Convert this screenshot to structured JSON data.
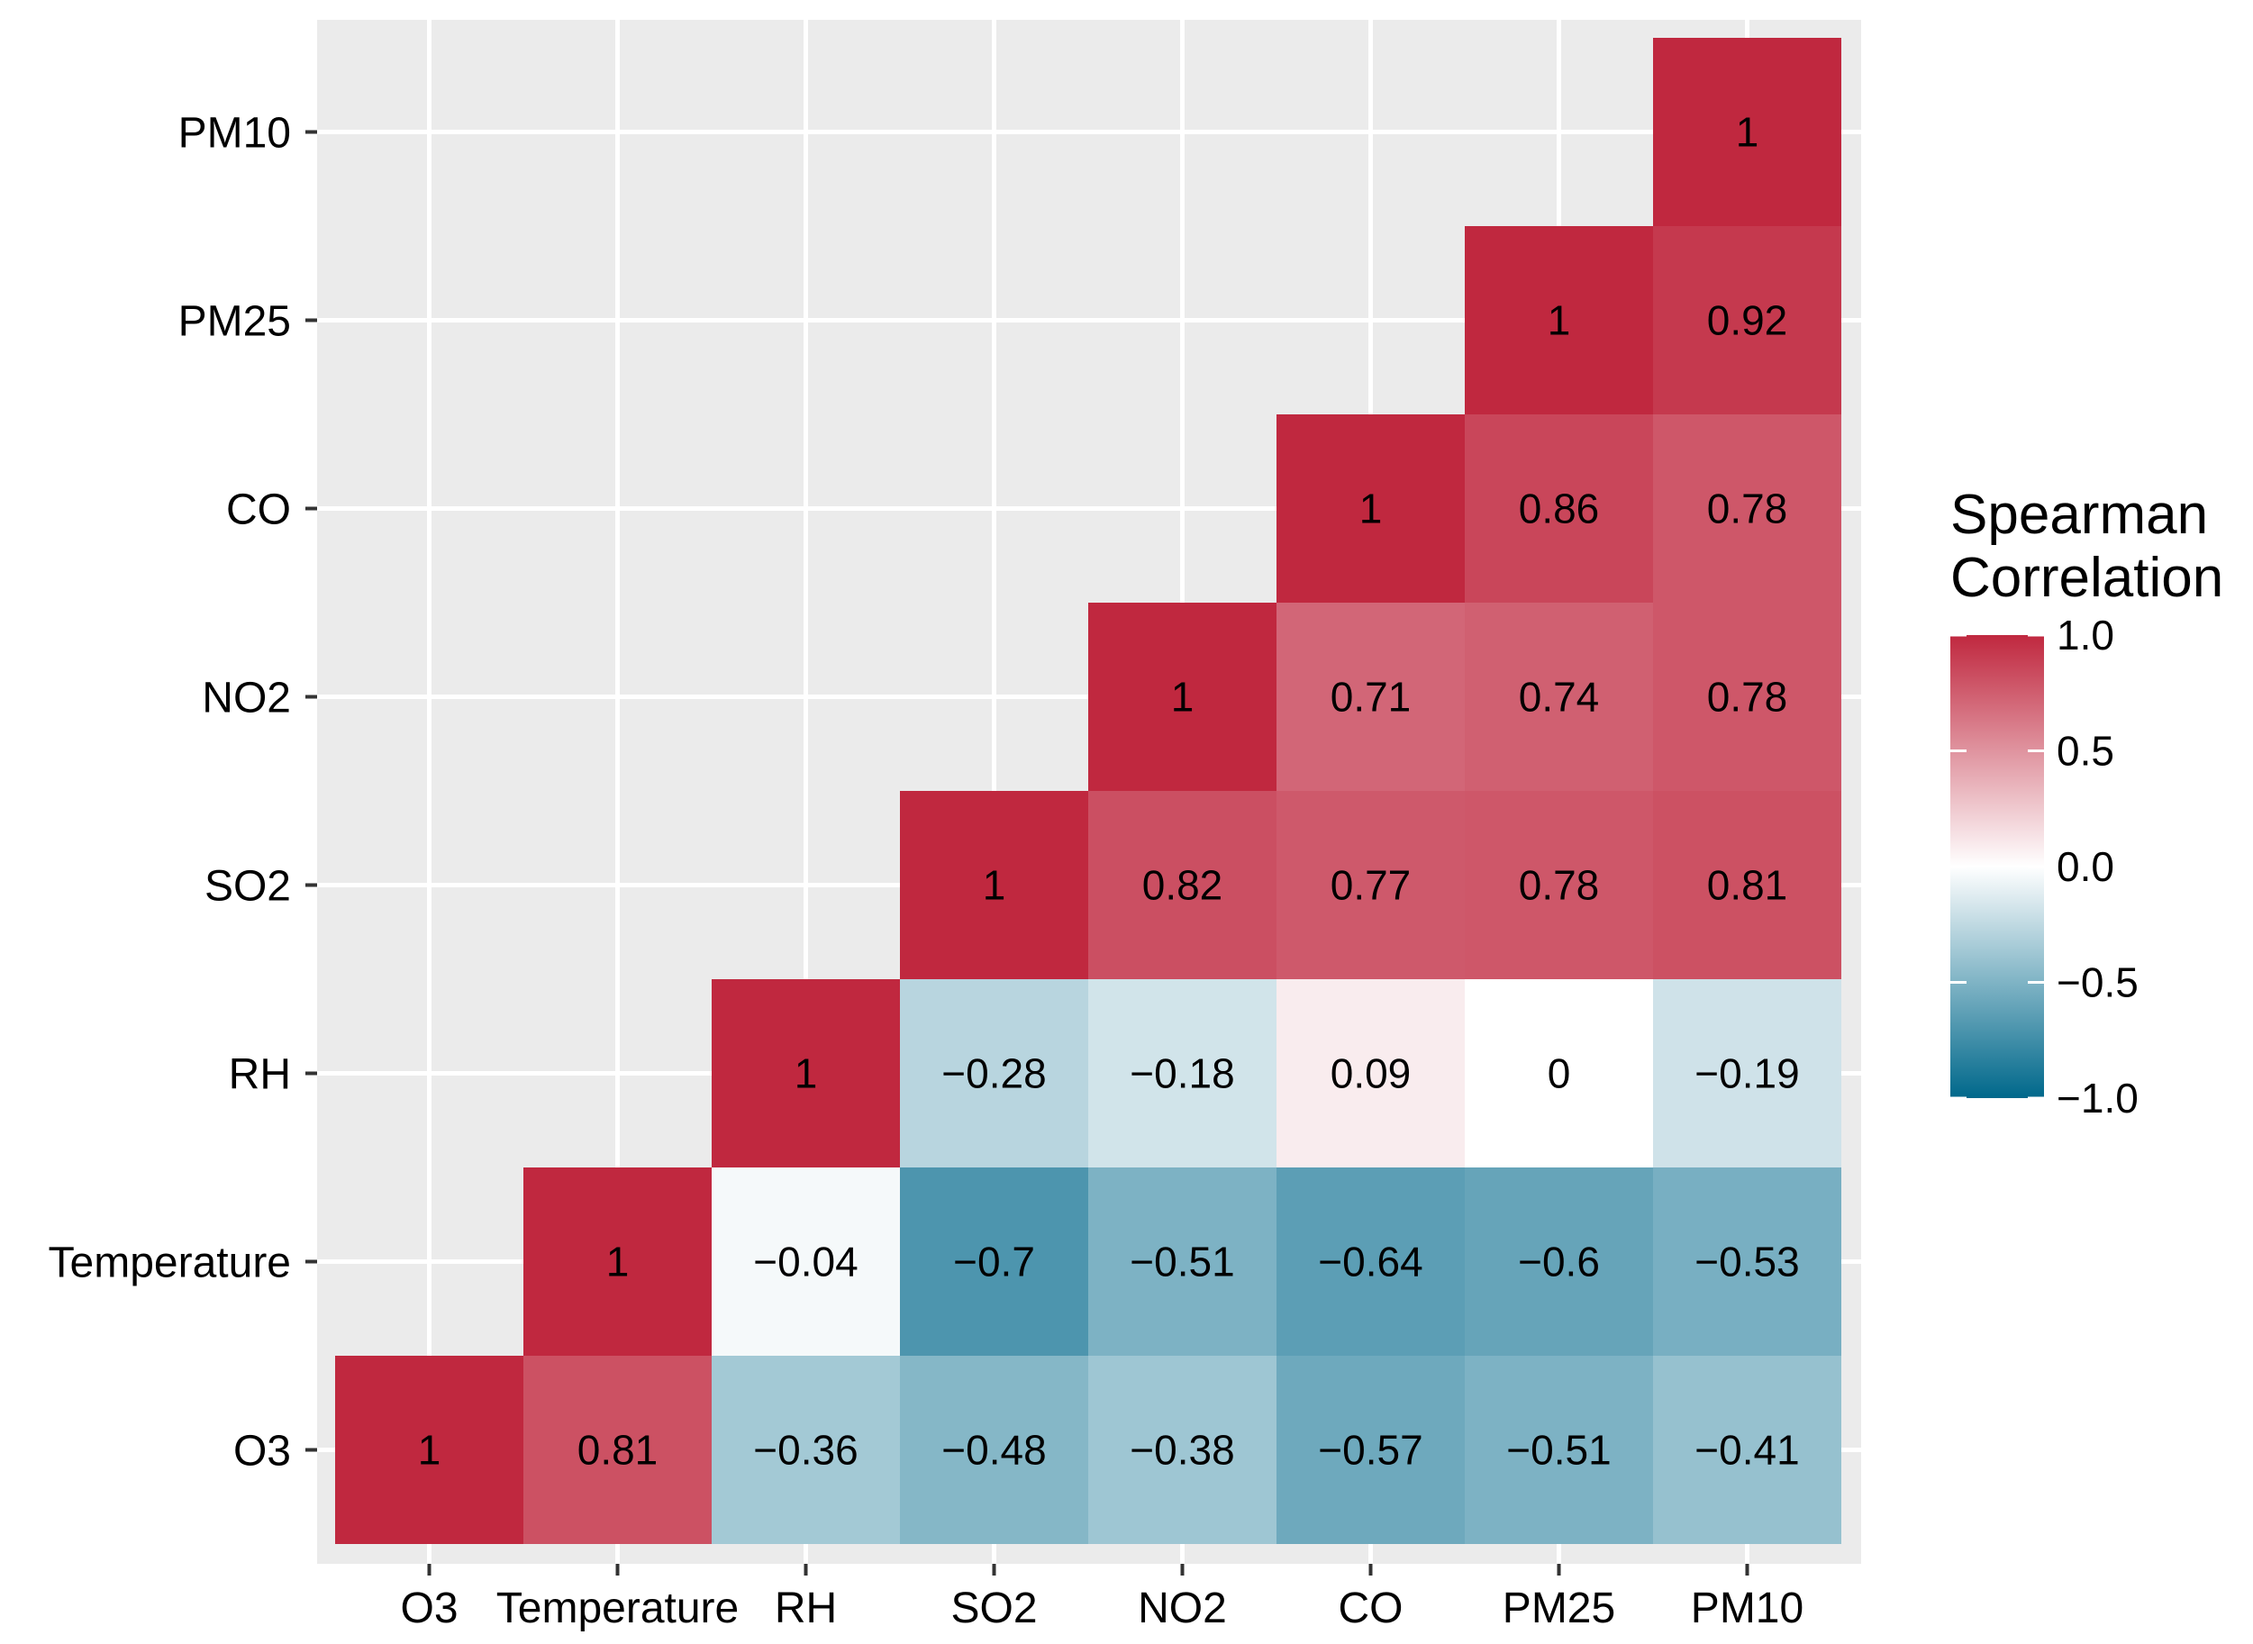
{
  "chart_data": {
    "type": "heatmap",
    "variables": [
      "O3",
      "Temperature",
      "RH",
      "SO2",
      "NO2",
      "CO",
      "PM25",
      "PM10"
    ],
    "x_labels": [
      "O3",
      "Temperature",
      "RH",
      "SO2",
      "NO2",
      "CO",
      "PM25",
      "PM10"
    ],
    "y_labels": [
      "O3",
      "Temperature",
      "RH",
      "SO2",
      "NO2",
      "CO",
      "PM25",
      "PM10"
    ],
    "cells": [
      {
        "x": "O3",
        "y": "O3",
        "value": 1,
        "label": "1"
      },
      {
        "x": "Temperature",
        "y": "O3",
        "value": 0.81,
        "label": "0.81"
      },
      {
        "x": "RH",
        "y": "O3",
        "value": -0.36,
        "label": "−0.36"
      },
      {
        "x": "SO2",
        "y": "O3",
        "value": -0.48,
        "label": "−0.48"
      },
      {
        "x": "NO2",
        "y": "O3",
        "value": -0.38,
        "label": "−0.38"
      },
      {
        "x": "CO",
        "y": "O3",
        "value": -0.57,
        "label": "−0.57"
      },
      {
        "x": "PM25",
        "y": "O3",
        "value": -0.51,
        "label": "−0.51"
      },
      {
        "x": "PM10",
        "y": "O3",
        "value": -0.41,
        "label": "−0.41"
      },
      {
        "x": "Temperature",
        "y": "Temperature",
        "value": 1,
        "label": "1"
      },
      {
        "x": "RH",
        "y": "Temperature",
        "value": -0.04,
        "label": "−0.04"
      },
      {
        "x": "SO2",
        "y": "Temperature",
        "value": -0.7,
        "label": "−0.7"
      },
      {
        "x": "NO2",
        "y": "Temperature",
        "value": -0.51,
        "label": "−0.51"
      },
      {
        "x": "CO",
        "y": "Temperature",
        "value": -0.64,
        "label": "−0.64"
      },
      {
        "x": "PM25",
        "y": "Temperature",
        "value": -0.6,
        "label": "−0.6"
      },
      {
        "x": "PM10",
        "y": "Temperature",
        "value": -0.53,
        "label": "−0.53"
      },
      {
        "x": "RH",
        "y": "RH",
        "value": 1,
        "label": "1"
      },
      {
        "x": "SO2",
        "y": "RH",
        "value": -0.28,
        "label": "−0.28"
      },
      {
        "x": "NO2",
        "y": "RH",
        "value": -0.18,
        "label": "−0.18"
      },
      {
        "x": "CO",
        "y": "RH",
        "value": 0.09,
        "label": "0.09"
      },
      {
        "x": "PM25",
        "y": "RH",
        "value": 0,
        "label": "0"
      },
      {
        "x": "PM10",
        "y": "RH",
        "value": -0.19,
        "label": "−0.19"
      },
      {
        "x": "SO2",
        "y": "SO2",
        "value": 1,
        "label": "1"
      },
      {
        "x": "NO2",
        "y": "SO2",
        "value": 0.82,
        "label": "0.82"
      },
      {
        "x": "CO",
        "y": "SO2",
        "value": 0.77,
        "label": "0.77"
      },
      {
        "x": "PM25",
        "y": "SO2",
        "value": 0.78,
        "label": "0.78"
      },
      {
        "x": "PM10",
        "y": "SO2",
        "value": 0.81,
        "label": "0.81"
      },
      {
        "x": "NO2",
        "y": "NO2",
        "value": 1,
        "label": "1"
      },
      {
        "x": "CO",
        "y": "NO2",
        "value": 0.71,
        "label": "0.71"
      },
      {
        "x": "PM25",
        "y": "NO2",
        "value": 0.74,
        "label": "0.74"
      },
      {
        "x": "PM10",
        "y": "NO2",
        "value": 0.78,
        "label": "0.78"
      },
      {
        "x": "CO",
        "y": "CO",
        "value": 1,
        "label": "1"
      },
      {
        "x": "PM25",
        "y": "CO",
        "value": 0.86,
        "label": "0.86"
      },
      {
        "x": "PM10",
        "y": "CO",
        "value": 0.78,
        "label": "0.78"
      },
      {
        "x": "PM25",
        "y": "PM25",
        "value": 1,
        "label": "1"
      },
      {
        "x": "PM10",
        "y": "PM25",
        "value": 0.92,
        "label": "0.92"
      },
      {
        "x": "PM10",
        "y": "PM10",
        "value": 1,
        "label": "1"
      }
    ],
    "legend": {
      "title_line1": "Spearman",
      "title_line2": "Correlation",
      "breaks": [
        1.0,
        0.5,
        0.0,
        -0.5,
        -1.0
      ],
      "break_labels": [
        "1.0",
        "0.5",
        "0.0",
        "−0.5",
        "−1.0"
      ],
      "limits": [
        -1,
        1
      ],
      "low_color": "#00688B",
      "mid_color": "#FFFFFF",
      "high_color": "#C0283F",
      "position": "right"
    },
    "panel_background": "#EBEBEB",
    "grid": true,
    "title": "",
    "xlabel": "",
    "ylabel": ""
  }
}
